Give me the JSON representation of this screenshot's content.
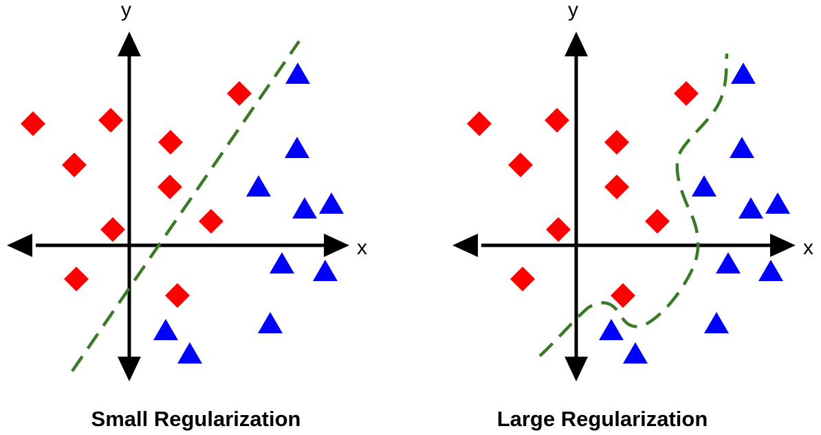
{
  "colors": {
    "class_a": "#ff0000",
    "class_b": "#0000ff",
    "boundary": "#3a7a26",
    "axis": "#000000"
  },
  "legend_markers": {
    "class_a_shape": "diamond",
    "class_b_shape": "triangle"
  },
  "panels": [
    {
      "caption": "Small Regularization",
      "x_label": "x",
      "y_label": "y",
      "boundary_type": "straight dashed line"
    },
    {
      "caption": "Large Regularization",
      "x_label": "x",
      "y_label": "y",
      "boundary_type": "curvy dashed line"
    }
  ]
}
